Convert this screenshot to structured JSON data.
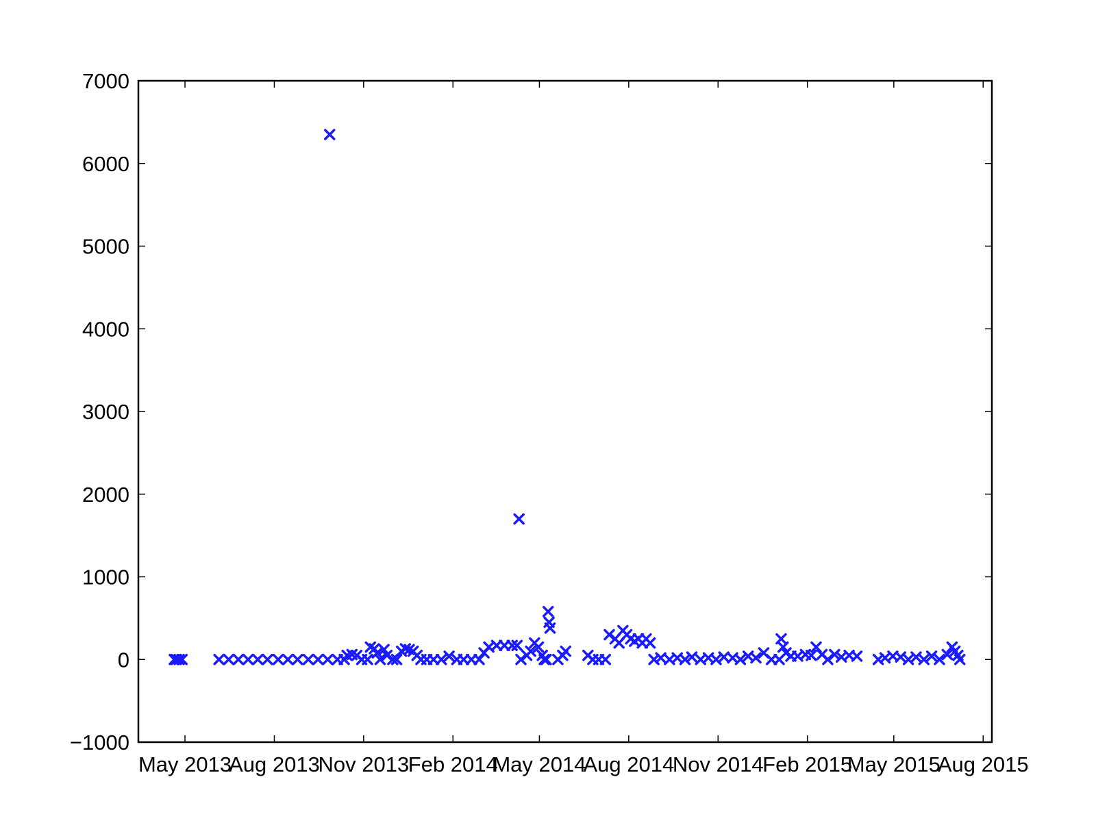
{
  "chart_data": {
    "type": "scatter",
    "title": "",
    "xlabel": "",
    "ylabel": "",
    "marker": "x",
    "color": "#1a1aff",
    "grid": false,
    "legend": "none",
    "ylim": [
      -1000,
      7000
    ],
    "xlim": [
      "2013-03-14",
      "2015-08-10"
    ],
    "yticks": [
      {
        "value": -1000,
        "label": "−1000"
      },
      {
        "value": 0,
        "label": "0"
      },
      {
        "value": 1000,
        "label": "1000"
      },
      {
        "value": 2000,
        "label": "2000"
      },
      {
        "value": 3000,
        "label": "3000"
      },
      {
        "value": 4000,
        "label": "4000"
      },
      {
        "value": 5000,
        "label": "5000"
      },
      {
        "value": 6000,
        "label": "6000"
      },
      {
        "value": 7000,
        "label": "7000"
      }
    ],
    "xticks": [
      {
        "date": "2013-05-01",
        "label": "May 2013"
      },
      {
        "date": "2013-08-01",
        "label": "Aug 2013"
      },
      {
        "date": "2013-11-01",
        "label": "Nov 2013"
      },
      {
        "date": "2014-02-01",
        "label": "Feb 2014"
      },
      {
        "date": "2014-05-01",
        "label": "May 2014"
      },
      {
        "date": "2014-08-01",
        "label": "Aug 2014"
      },
      {
        "date": "2014-11-01",
        "label": "Nov 2014"
      },
      {
        "date": "2015-02-01",
        "label": "Feb 2015"
      },
      {
        "date": "2015-05-01",
        "label": "May 2015"
      },
      {
        "date": "2015-08-01",
        "label": "Aug 2015"
      }
    ],
    "series": [
      {
        "values": [
          {
            "x": "2013-04-20",
            "y": 0
          },
          {
            "x": "2013-04-22",
            "y": 0
          },
          {
            "x": "2013-04-25",
            "y": 0
          },
          {
            "x": "2013-04-28",
            "y": 0
          },
          {
            "x": "2013-06-05",
            "y": 0
          },
          {
            "x": "2013-06-15",
            "y": 0
          },
          {
            "x": "2013-06-25",
            "y": 0
          },
          {
            "x": "2013-07-05",
            "y": 0
          },
          {
            "x": "2013-07-15",
            "y": 0
          },
          {
            "x": "2013-07-25",
            "y": 0
          },
          {
            "x": "2013-08-05",
            "y": 0
          },
          {
            "x": "2013-08-15",
            "y": 0
          },
          {
            "x": "2013-08-25",
            "y": 0
          },
          {
            "x": "2013-09-05",
            "y": 0
          },
          {
            "x": "2013-09-15",
            "y": 0
          },
          {
            "x": "2013-09-25",
            "y": 0
          },
          {
            "x": "2013-10-05",
            "y": 0
          },
          {
            "x": "2013-10-12",
            "y": 0
          },
          {
            "x": "2013-09-27",
            "y": 6350
          },
          {
            "x": "2013-10-15",
            "y": 50
          },
          {
            "x": "2013-10-20",
            "y": 60
          },
          {
            "x": "2013-10-25",
            "y": 50
          },
          {
            "x": "2013-10-30",
            "y": 0
          },
          {
            "x": "2013-11-05",
            "y": 0
          },
          {
            "x": "2013-11-08",
            "y": 150
          },
          {
            "x": "2013-11-12",
            "y": 130
          },
          {
            "x": "2013-11-15",
            "y": 80
          },
          {
            "x": "2013-11-18",
            "y": 0
          },
          {
            "x": "2013-11-22",
            "y": 120
          },
          {
            "x": "2013-11-25",
            "y": 50
          },
          {
            "x": "2013-12-01",
            "y": 0
          },
          {
            "x": "2013-12-05",
            "y": 0
          },
          {
            "x": "2013-12-10",
            "y": 100
          },
          {
            "x": "2013-12-14",
            "y": 130
          },
          {
            "x": "2013-12-18",
            "y": 120
          },
          {
            "x": "2013-12-22",
            "y": 100
          },
          {
            "x": "2013-12-26",
            "y": 50
          },
          {
            "x": "2013-12-30",
            "y": 0
          },
          {
            "x": "2014-01-05",
            "y": 0
          },
          {
            "x": "2014-01-12",
            "y": 0
          },
          {
            "x": "2014-01-20",
            "y": 0
          },
          {
            "x": "2014-01-28",
            "y": 40
          },
          {
            "x": "2014-02-05",
            "y": 0
          },
          {
            "x": "2014-02-12",
            "y": 0
          },
          {
            "x": "2014-02-20",
            "y": 0
          },
          {
            "x": "2014-02-28",
            "y": 0
          },
          {
            "x": "2014-03-05",
            "y": 80
          },
          {
            "x": "2014-03-10",
            "y": 150
          },
          {
            "x": "2014-03-18",
            "y": 170
          },
          {
            "x": "2014-03-26",
            "y": 170
          },
          {
            "x": "2014-04-03",
            "y": 170
          },
          {
            "x": "2014-04-08",
            "y": 170
          },
          {
            "x": "2014-04-10",
            "y": 1700
          },
          {
            "x": "2014-04-12",
            "y": 0
          },
          {
            "x": "2014-04-18",
            "y": 50
          },
          {
            "x": "2014-04-22",
            "y": 100
          },
          {
            "x": "2014-04-26",
            "y": 200
          },
          {
            "x": "2014-04-30",
            "y": 150
          },
          {
            "x": "2014-05-04",
            "y": 50
          },
          {
            "x": "2014-05-06",
            "y": 0
          },
          {
            "x": "2014-05-08",
            "y": 0
          },
          {
            "x": "2014-05-10",
            "y": 580
          },
          {
            "x": "2014-05-11",
            "y": 450
          },
          {
            "x": "2014-05-12",
            "y": 380
          },
          {
            "x": "2014-05-20",
            "y": 0
          },
          {
            "x": "2014-05-25",
            "y": 50
          },
          {
            "x": "2014-05-28",
            "y": 100
          },
          {
            "x": "2014-06-20",
            "y": 50
          },
          {
            "x": "2014-06-25",
            "y": 0
          },
          {
            "x": "2014-07-01",
            "y": 0
          },
          {
            "x": "2014-07-08",
            "y": 0
          },
          {
            "x": "2014-07-12",
            "y": 300
          },
          {
            "x": "2014-07-18",
            "y": 250
          },
          {
            "x": "2014-07-22",
            "y": 200
          },
          {
            "x": "2014-07-26",
            "y": 350
          },
          {
            "x": "2014-07-30",
            "y": 300
          },
          {
            "x": "2014-08-03",
            "y": 250
          },
          {
            "x": "2014-08-07",
            "y": 220
          },
          {
            "x": "2014-08-11",
            "y": 250
          },
          {
            "x": "2014-08-15",
            "y": 200
          },
          {
            "x": "2014-08-19",
            "y": 250
          },
          {
            "x": "2014-08-23",
            "y": 200
          },
          {
            "x": "2014-08-27",
            "y": 0
          },
          {
            "x": "2014-09-03",
            "y": 20
          },
          {
            "x": "2014-09-12",
            "y": 0
          },
          {
            "x": "2014-09-20",
            "y": 20
          },
          {
            "x": "2014-09-28",
            "y": 0
          },
          {
            "x": "2014-10-05",
            "y": 30
          },
          {
            "x": "2014-10-14",
            "y": 0
          },
          {
            "x": "2014-10-22",
            "y": 20
          },
          {
            "x": "2014-10-30",
            "y": 0
          },
          {
            "x": "2014-11-07",
            "y": 30
          },
          {
            "x": "2014-11-16",
            "y": 20
          },
          {
            "x": "2014-11-24",
            "y": 0
          },
          {
            "x": "2014-12-02",
            "y": 40
          },
          {
            "x": "2014-12-10",
            "y": 20
          },
          {
            "x": "2014-12-18",
            "y": 80
          },
          {
            "x": "2014-12-26",
            "y": 0
          },
          {
            "x": "2015-01-03",
            "y": 0
          },
          {
            "x": "2015-01-05",
            "y": 250
          },
          {
            "x": "2015-01-07",
            "y": 150
          },
          {
            "x": "2015-01-10",
            "y": 80
          },
          {
            "x": "2015-01-15",
            "y": 40
          },
          {
            "x": "2015-01-22",
            "y": 40
          },
          {
            "x": "2015-01-30",
            "y": 60
          },
          {
            "x": "2015-02-05",
            "y": 50
          },
          {
            "x": "2015-02-10",
            "y": 150
          },
          {
            "x": "2015-02-16",
            "y": 60
          },
          {
            "x": "2015-02-22",
            "y": 0
          },
          {
            "x": "2015-03-01",
            "y": 60
          },
          {
            "x": "2015-03-08",
            "y": 30
          },
          {
            "x": "2015-03-16",
            "y": 50
          },
          {
            "x": "2015-03-24",
            "y": 40
          },
          {
            "x": "2015-04-15",
            "y": 0
          },
          {
            "x": "2015-04-22",
            "y": 20
          },
          {
            "x": "2015-04-30",
            "y": 40
          },
          {
            "x": "2015-05-08",
            "y": 30
          },
          {
            "x": "2015-05-16",
            "y": 0
          },
          {
            "x": "2015-05-24",
            "y": 30
          },
          {
            "x": "2015-06-01",
            "y": 0
          },
          {
            "x": "2015-06-09",
            "y": 40
          },
          {
            "x": "2015-06-17",
            "y": 0
          },
          {
            "x": "2015-06-25",
            "y": 60
          },
          {
            "x": "2015-06-30",
            "y": 150
          },
          {
            "x": "2015-07-03",
            "y": 100
          },
          {
            "x": "2015-07-06",
            "y": 50
          },
          {
            "x": "2015-07-08",
            "y": 0
          }
        ]
      }
    ]
  }
}
